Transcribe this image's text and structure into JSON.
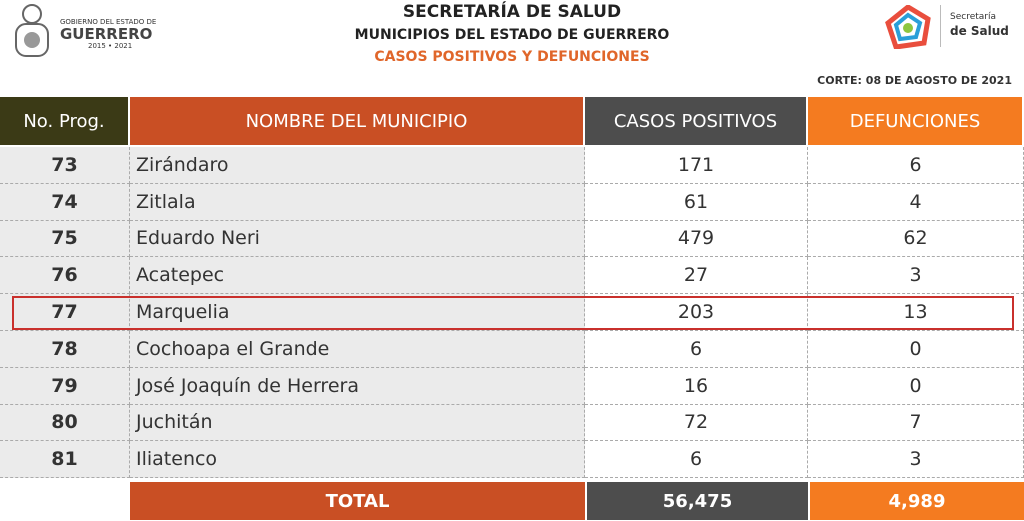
{
  "header": {
    "left_logo": {
      "line1": "GOBIERNO DEL ESTADO DE",
      "line2": "GUERRERO",
      "line3": "2015 • 2021"
    },
    "title": "SECRETARÍA DE SALUD",
    "subtitle": "MUNICIPIOS DEL ESTADO DE GUERRERO",
    "subtitle2": "CASOS POSITIVOS Y DEFUNCIONES",
    "right_logo": {
      "line1": "Secretaría",
      "line2": "de Salud"
    },
    "cutoff": "CORTE: 08 DE AGOSTO DE 2021"
  },
  "table": {
    "columns": [
      "No. Prog.",
      "NOMBRE DEL MUNICIPIO",
      "CASOS POSITIVOS",
      "DEFUNCIONES"
    ],
    "rows": [
      [
        "73",
        "Zirándaro",
        "171",
        "6"
      ],
      [
        "74",
        "Zitlala",
        "61",
        "4"
      ],
      [
        "75",
        "Eduardo Neri",
        "479",
        "62"
      ],
      [
        "76",
        "Acatepec",
        "27",
        "3"
      ],
      [
        "77",
        "Marquelia",
        "203",
        "13"
      ],
      [
        "78",
        "Cochoapa el Grande",
        "6",
        "0"
      ],
      [
        "79",
        "José Joaquín de Herrera",
        "16",
        "0"
      ],
      [
        "80",
        "Juchitán",
        "72",
        "7"
      ],
      [
        "81",
        "Iliatenco",
        "6",
        "3"
      ]
    ],
    "total": {
      "label": "TOTAL",
      "casos": "56,475",
      "defunciones": "4,989"
    }
  }
}
